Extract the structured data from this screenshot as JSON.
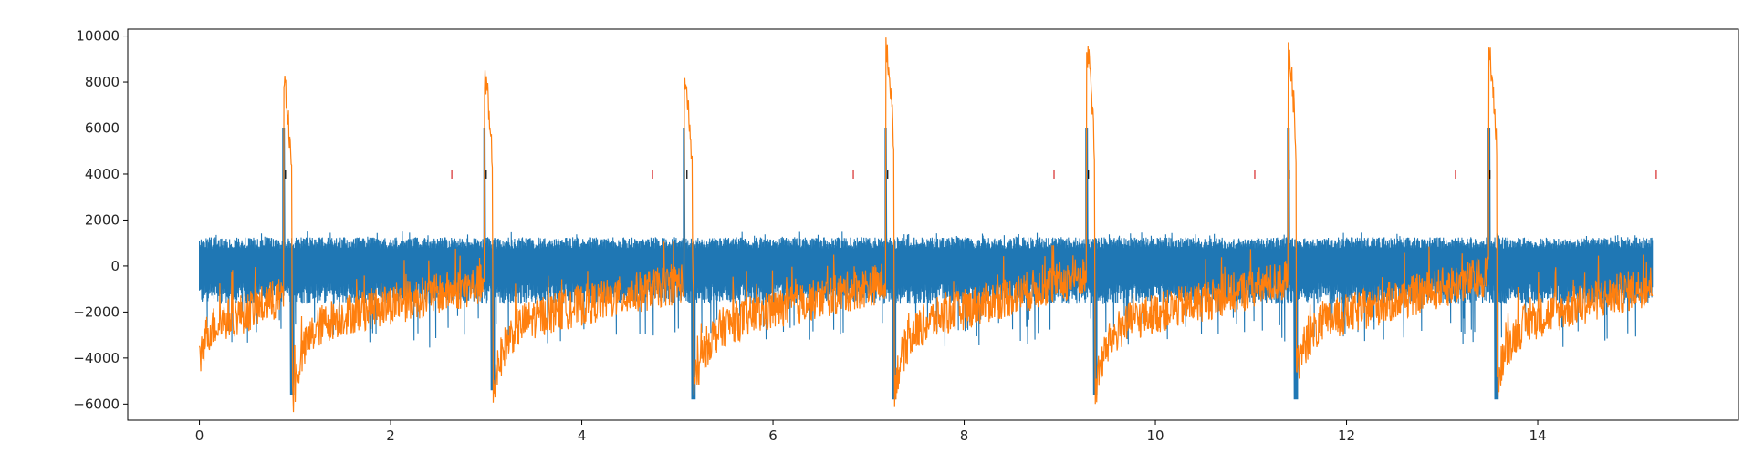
{
  "chart_data": {
    "type": "line",
    "title": "",
    "xlabel": "",
    "ylabel": "",
    "xlim": [
      -0.75,
      16.1
    ],
    "ylim": [
      -6700,
      10300
    ],
    "xticks": [
      0,
      2,
      4,
      6,
      8,
      10,
      12,
      14
    ],
    "xtick_labels": [
      "0",
      "2",
      "4",
      "6",
      "8",
      "10",
      "12",
      "14"
    ],
    "yticks": [
      -6000,
      -4000,
      -2000,
      0,
      2000,
      4000,
      6000,
      8000,
      10000
    ],
    "ytick_labels": [
      "−6000",
      "−4000",
      "−2000",
      "0",
      "2000",
      "4000",
      "6000",
      "8000",
      "10000"
    ],
    "grid": false,
    "colors": {
      "blue": "#1f77b4",
      "orange": "#ff7f0e",
      "red": "#d62728",
      "black": "#000000"
    },
    "series": [
      {
        "color": "#1f77b4",
        "x_range": [
          0,
          15.2
        ],
        "band_low": -1200,
        "band_high": 1250,
        "spike_x": [
          0.88,
          2.98,
          5.07,
          7.18,
          9.28,
          11.39,
          13.49
        ],
        "spike_peak": [
          6000,
          6000,
          6000,
          6000,
          6000,
          6000,
          6000
        ],
        "dip_x": [
          0.97,
          3.07,
          5.17,
          7.27,
          9.37,
          11.47,
          13.57
        ],
        "dip_min": [
          -5600,
          -5400,
          -5800,
          -5800,
          -5600,
          -5800,
          -5800
        ]
      },
      {
        "color": "#ff7f0e",
        "x_range": [
          0,
          15.2
        ],
        "spike_x": [
          0.88,
          2.98,
          5.07,
          7.18,
          9.28,
          11.39,
          13.49
        ],
        "spike_peak": [
          8600,
          9000,
          8900,
          10100,
          10000,
          9900,
          9800
        ],
        "dip_x": [
          0.97,
          3.07,
          5.17,
          7.27,
          9.37,
          11.47,
          13.57
        ],
        "dip_min": [
          -5900,
          -5500,
          -5400,
          -5300,
          -5500,
          -4500,
          -5200
        ],
        "baseline_start": [
          -2800,
          -2600,
          -2600,
          -2800,
          -2700,
          -2700,
          -2700,
          -2700
        ],
        "baseline_end": [
          -1200,
          -700,
          -600,
          -600,
          -300,
          -500,
          -300,
          -800
        ]
      }
    ],
    "markers": [
      {
        "color": "#000000",
        "y": 4000,
        "x": [
          0.9,
          3.0,
          5.1,
          7.2,
          9.3,
          11.4,
          13.5
        ]
      },
      {
        "color": "#d62728",
        "y": 4000,
        "x": [
          2.64,
          4.74,
          6.84,
          8.94,
          11.04,
          13.14,
          15.24
        ]
      }
    ]
  }
}
